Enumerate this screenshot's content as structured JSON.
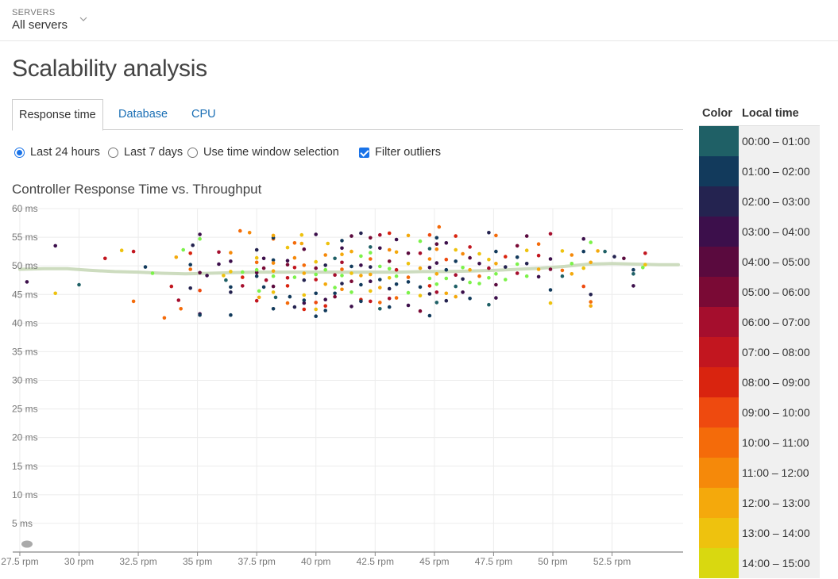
{
  "servers": {
    "label": "SERVERS",
    "value": "All servers"
  },
  "page": {
    "title": "Scalability analysis"
  },
  "tabs": [
    {
      "label": "Response time",
      "active": true
    },
    {
      "label": "Database",
      "active": false
    },
    {
      "label": "CPU",
      "active": false
    }
  ],
  "options": {
    "last24": "Last 24 hours",
    "last7": "Last 7 days",
    "timewindow": "Use time window selection",
    "filter_outliers": "Filter outliers",
    "selected": "Last 24 hours",
    "filter_checked": true
  },
  "legend": {
    "color_header": "Color",
    "time_header": "Local time",
    "items": [
      {
        "label": "00:00 – 01:00",
        "color": "#1f6066"
      },
      {
        "label": "01:00 – 02:00",
        "color": "#123a5c"
      },
      {
        "label": "02:00 – 03:00",
        "color": "#242350"
      },
      {
        "label": "03:00 – 04:00",
        "color": "#3c0f4b"
      },
      {
        "label": "04:00 – 05:00",
        "color": "#5a0a3e"
      },
      {
        "label": "05:00 – 06:00",
        "color": "#7a0a35"
      },
      {
        "label": "06:00 – 07:00",
        "color": "#a50e2d"
      },
      {
        "label": "07:00 – 08:00",
        "color": "#c2161f"
      },
      {
        "label": "08:00 – 09:00",
        "color": "#d9240f"
      },
      {
        "label": "09:00 – 10:00",
        "color": "#ee4a0f"
      },
      {
        "label": "10:00 – 11:00",
        "color": "#f46b0a"
      },
      {
        "label": "11:00 – 12:00",
        "color": "#f5890a"
      },
      {
        "label": "12:00 – 13:00",
        "color": "#f4a90c"
      },
      {
        "label": "13:00 – 14:00",
        "color": "#eec20e"
      },
      {
        "label": "14:00 – 15:00",
        "color": "#d9d810"
      }
    ]
  },
  "chart_data": {
    "type": "scatter",
    "title": "Controller Response Time vs. Throughput",
    "xlabel": "",
    "ylabel": "",
    "xlim": [
      27.2,
      55.5
    ],
    "ylim": [
      0,
      60
    ],
    "x_ticks": [
      "27.5 rpm",
      "30 rpm",
      "32.5 rpm",
      "35 rpm",
      "37.5 rpm",
      "40 rpm",
      "42.5 rpm",
      "45 rpm",
      "47.5 rpm",
      "50 rpm",
      "52.5 rpm"
    ],
    "x_tick_values": [
      27.5,
      30,
      32.5,
      35,
      37.5,
      40,
      42.5,
      45,
      47.5,
      50,
      52.5
    ],
    "y_ticks": [
      "5 ms",
      "10 ms",
      "15 ms",
      "20 ms",
      "25 ms",
      "30 ms",
      "35 ms",
      "40 ms",
      "45 ms",
      "50 ms",
      "55 ms",
      "60 ms"
    ],
    "y_tick_values": [
      5,
      10,
      15,
      20,
      25,
      30,
      35,
      40,
      45,
      50,
      55,
      60
    ],
    "grid": true,
    "trend_line": {
      "color": "#c8d8b8",
      "points": [
        [
          27.5,
          49.4
        ],
        [
          28.5,
          49.5
        ],
        [
          29.5,
          49.5
        ],
        [
          30.5,
          49.2
        ],
        [
          31.5,
          49.0
        ],
        [
          32.5,
          48.9
        ],
        [
          33.5,
          48.7
        ],
        [
          34.5,
          48.6
        ],
        [
          35.5,
          48.7
        ],
        [
          36.5,
          48.8
        ],
        [
          37.5,
          48.9
        ],
        [
          38.5,
          48.9
        ],
        [
          39.5,
          48.9
        ],
        [
          40.5,
          48.9
        ],
        [
          41.5,
          48.9
        ],
        [
          42.5,
          48.9
        ],
        [
          43.5,
          48.9
        ],
        [
          44.5,
          49.0
        ],
        [
          45.5,
          49.0
        ],
        [
          46.5,
          49.1
        ],
        [
          47.5,
          49.2
        ],
        [
          48.5,
          49.4
        ],
        [
          49.5,
          49.6
        ],
        [
          50.5,
          49.9
        ],
        [
          51.5,
          50.3
        ],
        [
          52.5,
          50.4
        ],
        [
          53.5,
          50.3
        ],
        [
          54.5,
          50.2
        ],
        [
          55.3,
          50.2
        ]
      ]
    },
    "points": [
      [
        27.8,
        47.2,
        3
      ],
      [
        29,
        53.5,
        3
      ],
      [
        29,
        45.2,
        13
      ],
      [
        30,
        46.7,
        0
      ],
      [
        31.1,
        51.3,
        7
      ],
      [
        31.8,
        52.7,
        13
      ],
      [
        32.3,
        52.5,
        7
      ],
      [
        32.3,
        43.8,
        10
      ],
      [
        32.8,
        49.8,
        1
      ],
      [
        33.1,
        48.7,
        14
      ],
      [
        33.6,
        40.9,
        10
      ],
      [
        33.9,
        46.4,
        7
      ],
      [
        34.1,
        51.5,
        12
      ],
      [
        34.2,
        44,
        6
      ],
      [
        34.3,
        42.5,
        10
      ],
      [
        34.4,
        52.8,
        14
      ],
      [
        34.7,
        46.1,
        2
      ],
      [
        34.7,
        49.4,
        10
      ],
      [
        34.7,
        50.2,
        1
      ],
      [
        34.7,
        52.2,
        8
      ],
      [
        34.8,
        53.6,
        2
      ],
      [
        35.1,
        41.6,
        3
      ],
      [
        35.1,
        48.8,
        4
      ],
      [
        35.1,
        45.7,
        9
      ],
      [
        35.1,
        55.5,
        3
      ],
      [
        35.1,
        54.7,
        14
      ],
      [
        35.1,
        41.4,
        1
      ],
      [
        35.4,
        48.3,
        3
      ],
      [
        35.9,
        52.4,
        6
      ],
      [
        35.9,
        50.3,
        3
      ],
      [
        36.1,
        48.3,
        13
      ],
      [
        36.2,
        47.5,
        0
      ],
      [
        36.4,
        52.3,
        11
      ],
      [
        36.4,
        49,
        13
      ],
      [
        36.4,
        50.8,
        3
      ],
      [
        36.4,
        46.3,
        1
      ],
      [
        36.4,
        45.4,
        2
      ],
      [
        36.4,
        41.4,
        1
      ],
      [
        36.8,
        56.1,
        10
      ],
      [
        36.9,
        48,
        8
      ],
      [
        36.9,
        48.9,
        14
      ],
      [
        36.9,
        46.5,
        6
      ],
      [
        37.2,
        55.8,
        11
      ],
      [
        37.5,
        52.8,
        2
      ],
      [
        37.5,
        50.6,
        10
      ],
      [
        37.5,
        48.2,
        1
      ],
      [
        37.5,
        51.4,
        13
      ],
      [
        37.5,
        43.9,
        7
      ],
      [
        37.5,
        48.8,
        4
      ],
      [
        37.5,
        49.3,
        14
      ],
      [
        37.6,
        44.5,
        12
      ],
      [
        37.6,
        45.6,
        14
      ],
      [
        37.8,
        49.6,
        5
      ],
      [
        37.8,
        51.3,
        3
      ],
      [
        37.8,
        46.3,
        1
      ],
      [
        37.9,
        47.5,
        6
      ],
      [
        38.2,
        51,
        1
      ],
      [
        38.2,
        54.7,
        10
      ],
      [
        38.2,
        50.5,
        11
      ],
      [
        38.2,
        49.1,
        12
      ],
      [
        38.2,
        54.9,
        1
      ],
      [
        38.2,
        48.2,
        14
      ],
      [
        38.2,
        46.4,
        4
      ],
      [
        38.2,
        45.4,
        13
      ],
      [
        38.2,
        42.5,
        1
      ],
      [
        38.2,
        55.3,
        12
      ],
      [
        38.3,
        44.5,
        0
      ],
      [
        38.8,
        47.9,
        7
      ],
      [
        38.8,
        43.5,
        10
      ],
      [
        38.8,
        50.2,
        5
      ],
      [
        38.8,
        53.2,
        13
      ],
      [
        38.8,
        50.9,
        3
      ],
      [
        38.8,
        46.5,
        8
      ],
      [
        38.9,
        44.6,
        1
      ],
      [
        39.1,
        51.4,
        11
      ],
      [
        39.1,
        49.7,
        7
      ],
      [
        39.1,
        54,
        10
      ],
      [
        39.1,
        48,
        14
      ],
      [
        39.1,
        42.8,
        2
      ],
      [
        39.4,
        53.9,
        12
      ],
      [
        39.4,
        55.4,
        13
      ],
      [
        39.5,
        52.9,
        4
      ],
      [
        39.5,
        50.1,
        10
      ],
      [
        39.5,
        47.5,
        2
      ],
      [
        39.5,
        48.7,
        12
      ],
      [
        39.5,
        44.9,
        13
      ],
      [
        39.5,
        43.5,
        3
      ],
      [
        39.5,
        44,
        1
      ],
      [
        39.5,
        42.4,
        8
      ],
      [
        40,
        50.7,
        13
      ],
      [
        40,
        49.6,
        5
      ],
      [
        40,
        48.5,
        14
      ],
      [
        40,
        47.6,
        7
      ],
      [
        40,
        45.2,
        1
      ],
      [
        40,
        43.6,
        9
      ],
      [
        40,
        42.4,
        13
      ],
      [
        40,
        41.2,
        1
      ],
      [
        40,
        55.5,
        3
      ],
      [
        40.4,
        51.9,
        11
      ],
      [
        40.4,
        50.1,
        2
      ],
      [
        40.4,
        49.3,
        14
      ],
      [
        40.4,
        46.8,
        12
      ],
      [
        40.4,
        44.1,
        3
      ],
      [
        40.4,
        43,
        8
      ],
      [
        40.4,
        42.2,
        1
      ],
      [
        40.5,
        53.9,
        13
      ],
      [
        40.8,
        51.3,
        0
      ],
      [
        40.8,
        48.4,
        6
      ],
      [
        40.8,
        46.2,
        14
      ],
      [
        40.8,
        45.2,
        1
      ],
      [
        40.8,
        44.6,
        5
      ],
      [
        41.1,
        54.4,
        1
      ],
      [
        41.1,
        53.1,
        3
      ],
      [
        41.1,
        52,
        12
      ],
      [
        41.1,
        50.6,
        6
      ],
      [
        41.1,
        49.4,
        10
      ],
      [
        41.1,
        48.3,
        14
      ],
      [
        41.1,
        46.9,
        2
      ],
      [
        41.1,
        45.9,
        11
      ],
      [
        41.5,
        55.2,
        4
      ],
      [
        41.5,
        52.5,
        12
      ],
      [
        41.5,
        49.9,
        1
      ],
      [
        41.5,
        48.7,
        13
      ],
      [
        41.5,
        47.3,
        5
      ],
      [
        41.5,
        45.4,
        14
      ],
      [
        41.5,
        42.9,
        3
      ],
      [
        41.9,
        55.7,
        2
      ],
      [
        41.9,
        51.7,
        14
      ],
      [
        41.9,
        50.1,
        3
      ],
      [
        41.9,
        48.3,
        12
      ],
      [
        41.9,
        46.7,
        1
      ],
      [
        41.9,
        44.1,
        8
      ],
      [
        41.9,
        43.8,
        1
      ],
      [
        42.3,
        54.9,
        5
      ],
      [
        42.3,
        53.3,
        0
      ],
      [
        42.3,
        52.3,
        14
      ],
      [
        42.3,
        51.2,
        10
      ],
      [
        42.3,
        49.8,
        2
      ],
      [
        42.3,
        48.5,
        12
      ],
      [
        42.3,
        47.3,
        3
      ],
      [
        42.3,
        45.6,
        13
      ],
      [
        42.3,
        43.8,
        7
      ],
      [
        42.7,
        55.4,
        6
      ],
      [
        42.7,
        53.1,
        3
      ],
      [
        42.7,
        49.9,
        14
      ],
      [
        42.7,
        47.6,
        1
      ],
      [
        42.7,
        46.2,
        12
      ],
      [
        42.7,
        43.6,
        10
      ],
      [
        42.7,
        42.5,
        0
      ],
      [
        43.1,
        55.7,
        8
      ],
      [
        43.1,
        52.8,
        11
      ],
      [
        43.1,
        50.8,
        5
      ],
      [
        43.1,
        49.5,
        14
      ],
      [
        43.1,
        47.9,
        13
      ],
      [
        43.1,
        46,
        2
      ],
      [
        43.1,
        44.3,
        6
      ],
      [
        43.1,
        42.8,
        1
      ],
      [
        43.4,
        54.6,
        3
      ],
      [
        43.4,
        52.4,
        12
      ],
      [
        43.4,
        49.3,
        7
      ],
      [
        43.4,
        48.2,
        14
      ],
      [
        43.4,
        46.8,
        1
      ],
      [
        43.4,
        44.4,
        10
      ],
      [
        43.9,
        55.3,
        12
      ],
      [
        43.9,
        52.2,
        4
      ],
      [
        43.9,
        50.4,
        13
      ],
      [
        43.9,
        48,
        10
      ],
      [
        43.9,
        47.2,
        1
      ],
      [
        43.9,
        45.3,
        14
      ],
      [
        43.9,
        43.1,
        3
      ],
      [
        44.4,
        54.3,
        14
      ],
      [
        44.4,
        52.2,
        6
      ],
      [
        44.4,
        49.6,
        12
      ],
      [
        44.4,
        46.3,
        1
      ],
      [
        44.4,
        44.8,
        13
      ],
      [
        44.4,
        42.1,
        5
      ],
      [
        44.8,
        55.4,
        9
      ],
      [
        44.8,
        53,
        0
      ],
      [
        44.8,
        51.2,
        11
      ],
      [
        44.8,
        49.7,
        3
      ],
      [
        44.8,
        47.8,
        14
      ],
      [
        44.8,
        46.5,
        8
      ],
      [
        44.8,
        45.1,
        2
      ],
      [
        44.8,
        41.3,
        1
      ],
      [
        45.1,
        54.9,
        1
      ],
      [
        45.1,
        53.8,
        4
      ],
      [
        45.1,
        52.9,
        11
      ],
      [
        45.1,
        50.5,
        3
      ],
      [
        45.1,
        48.6,
        12
      ],
      [
        45.1,
        46.8,
        14
      ],
      [
        45.1,
        45.4,
        6
      ],
      [
        45.1,
        43.6,
        0
      ],
      [
        45.2,
        56.8,
        10
      ],
      [
        45.5,
        54,
        3
      ],
      [
        45.5,
        51.1,
        9
      ],
      [
        45.5,
        49.3,
        1
      ],
      [
        45.5,
        47.8,
        14
      ],
      [
        45.5,
        45.2,
        12
      ],
      [
        45.5,
        43.9,
        2
      ],
      [
        45.9,
        55.2,
        8
      ],
      [
        45.9,
        52.8,
        13
      ],
      [
        45.9,
        50.8,
        1
      ],
      [
        45.9,
        48.4,
        6
      ],
      [
        45.9,
        46.4,
        0
      ],
      [
        45.9,
        44.6,
        12
      ],
      [
        46.2,
        52.1,
        11
      ],
      [
        46.2,
        49.7,
        14
      ],
      [
        46.2,
        47.7,
        2
      ],
      [
        46.2,
        45.4,
        3
      ],
      [
        46.5,
        53.3,
        7
      ],
      [
        46.5,
        51.4,
        4
      ],
      [
        46.5,
        49.3,
        12
      ],
      [
        46.5,
        47.1,
        14
      ],
      [
        46.5,
        44.3,
        1
      ],
      [
        46.9,
        52.1,
        13
      ],
      [
        46.9,
        50.4,
        3
      ],
      [
        46.9,
        48.2,
        10
      ],
      [
        46.9,
        46.9,
        14
      ],
      [
        47.3,
        55.8,
        2
      ],
      [
        47.3,
        51.1,
        13
      ],
      [
        47.3,
        49.6,
        6
      ],
      [
        47.3,
        47.9,
        14
      ],
      [
        47.3,
        43.2,
        0
      ],
      [
        47.6,
        55.3,
        10
      ],
      [
        47.6,
        52.5,
        1
      ],
      [
        47.6,
        50.4,
        12
      ],
      [
        47.6,
        48.6,
        14
      ],
      [
        47.6,
        46.7,
        4
      ],
      [
        47.6,
        44.4,
        3
      ],
      [
        48,
        51.6,
        8
      ],
      [
        48,
        49.8,
        2
      ],
      [
        48,
        47.6,
        14
      ],
      [
        48.5,
        53.5,
        5
      ],
      [
        48.5,
        51.5,
        1
      ],
      [
        48.5,
        50.3,
        14
      ],
      [
        48.5,
        48.7,
        6
      ],
      [
        48.9,
        55.2,
        4
      ],
      [
        48.9,
        52.7,
        13
      ],
      [
        48.9,
        50.4,
        2
      ],
      [
        48.9,
        48.2,
        14
      ],
      [
        49.4,
        53.8,
        10
      ],
      [
        49.4,
        51.8,
        7
      ],
      [
        49.4,
        49.4,
        12
      ],
      [
        49.4,
        48.1,
        3
      ],
      [
        49.9,
        55.6,
        6
      ],
      [
        49.9,
        51.2,
        3
      ],
      [
        49.9,
        49.4,
        5
      ],
      [
        49.9,
        45.8,
        1
      ],
      [
        49.9,
        43.5,
        13
      ],
      [
        50.4,
        52.6,
        13
      ],
      [
        50.4,
        49.2,
        10
      ],
      [
        50.4,
        48.2,
        0
      ],
      [
        50.8,
        51.9,
        11
      ],
      [
        50.8,
        50.4,
        14
      ],
      [
        50.8,
        48.6,
        12
      ],
      [
        51.3,
        54.7,
        3
      ],
      [
        51.3,
        52.5,
        1
      ],
      [
        51.3,
        49.6,
        13
      ],
      [
        51.3,
        46.4,
        9
      ],
      [
        51.6,
        54.1,
        14
      ],
      [
        51.6,
        50.6,
        12
      ],
      [
        51.6,
        43.7,
        10
      ],
      [
        51.6,
        45,
        2
      ],
      [
        51.6,
        43,
        12
      ],
      [
        51.9,
        52.6,
        12
      ],
      [
        52.2,
        52.5,
        0
      ],
      [
        52.6,
        51.6,
        2
      ],
      [
        53,
        51.3,
        4
      ],
      [
        53.4,
        49.3,
        1
      ],
      [
        53.4,
        48.6,
        0
      ],
      [
        53.4,
        46.5,
        3
      ],
      [
        53.8,
        49.7,
        14
      ],
      [
        53.9,
        52.2,
        7
      ],
      [
        53.9,
        50.2,
        13
      ]
    ]
  }
}
